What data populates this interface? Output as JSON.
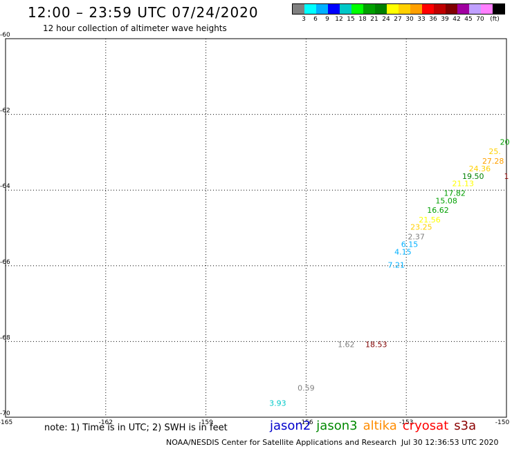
{
  "header": {
    "title": "12:00 – 23:59 UTC 07/24/2020",
    "subtitle": "12 hour collection of altimeter wave heights"
  },
  "legend": {
    "colors": [
      "#808080",
      "#00ffff",
      "#00b0ff",
      "#0000ff",
      "#00c8c8",
      "#00ff00",
      "#00a000",
      "#008000",
      "#ffff00",
      "#ffd000",
      "#ffa000",
      "#ff0000",
      "#c00000",
      "#800000",
      "#a000a0",
      "#c0a0ff",
      "#ff80ff",
      "#000000"
    ],
    "labels": [
      "3",
      "6",
      "9",
      "12",
      "15",
      "18",
      "21",
      "24",
      "27",
      "30",
      "33",
      "36",
      "39",
      "42",
      "45",
      "70",
      "(ft)"
    ]
  },
  "footer": {
    "note": "note: 1) Time is in UTC; 2) SWH is in feet",
    "satellites": [
      {
        "name": "jason2",
        "color": "#0000cc"
      },
      {
        "name": "jason3",
        "color": "#008800"
      },
      {
        "name": "altika",
        "color": "#ff8c00"
      },
      {
        "name": "cryosat",
        "color": "#ff0000"
      },
      {
        "name": "s3a",
        "color": "#8b0000"
      }
    ],
    "credit": "NOAA/NESDIS Center for Satellite Applications and Research",
    "timestamp": "Jul 30 12:36:53 UTC 2020"
  },
  "chart_data": {
    "type": "scatter",
    "title": "12:00 – 23:59 UTC 07/24/2020",
    "subtitle": "12 hour collection of altimeter wave heights",
    "xlim": [
      -165,
      -150
    ],
    "ylim": [
      -70,
      -60
    ],
    "x_ticks": [
      -165,
      -162,
      -159,
      -156,
      -153,
      -150
    ],
    "x_tick_labels": [
      "-165",
      "-162",
      "-159",
      "-156",
      "-153",
      "-150"
    ],
    "y_ticks": [
      -60,
      -62,
      -64,
      -66,
      -68,
      -70
    ],
    "y_tick_labels": [
      "-60",
      "-62",
      "-64",
      "-66",
      "-68",
      "-70"
    ],
    "grid": true,
    "points": [
      {
        "lon": -150.05,
        "lat": -62.8,
        "label": "20",
        "color": "#00a000"
      },
      {
        "lon": -150.35,
        "lat": -63.05,
        "label": "25.",
        "color": "#ffd000"
      },
      {
        "lon": -150.4,
        "lat": -63.3,
        "label": "27.28",
        "color": "#ffa000"
      },
      {
        "lon": -150.8,
        "lat": -63.5,
        "label": "24.36",
        "color": "#ffd000"
      },
      {
        "lon": -151.0,
        "lat": -63.7,
        "label": "19.50",
        "color": "#008000"
      },
      {
        "lon": -150.0,
        "lat": -63.7,
        "label": "1",
        "color": "#800000"
      },
      {
        "lon": -151.3,
        "lat": -63.9,
        "label": "21.13",
        "color": "#ffff00"
      },
      {
        "lon": -151.55,
        "lat": -64.15,
        "label": "17.82",
        "color": "#00a000"
      },
      {
        "lon": -151.8,
        "lat": -64.35,
        "label": "15.08",
        "color": "#00a000"
      },
      {
        "lon": -152.05,
        "lat": -64.6,
        "label": "16.62",
        "color": "#00a000"
      },
      {
        "lon": -152.3,
        "lat": -64.85,
        "label": "21.56",
        "color": "#ffff00"
      },
      {
        "lon": -152.55,
        "lat": -65.05,
        "label": "23.25",
        "color": "#ffd000"
      },
      {
        "lon": -152.7,
        "lat": -65.3,
        "label": "2.37",
        "color": "#808080"
      },
      {
        "lon": -152.9,
        "lat": -65.5,
        "label": "6.15",
        "color": "#00b0ff"
      },
      {
        "lon": -153.1,
        "lat": -65.7,
        "label": "4.15",
        "color": "#00b0ff"
      },
      {
        "lon": -153.3,
        "lat": -66.05,
        "label": "7.21",
        "color": "#00b0ff"
      },
      {
        "lon": -154.8,
        "lat": -68.15,
        "label": "1.62",
        "color": "#808080"
      },
      {
        "lon": -153.9,
        "lat": -68.15,
        "label": "18.53",
        "color": "#800000"
      },
      {
        "lon": -156.0,
        "lat": -69.3,
        "label": "0.59",
        "color": "#808080"
      },
      {
        "lon": -156.85,
        "lat": -69.7,
        "label": "3.93",
        "color": "#00c8c8"
      }
    ]
  }
}
